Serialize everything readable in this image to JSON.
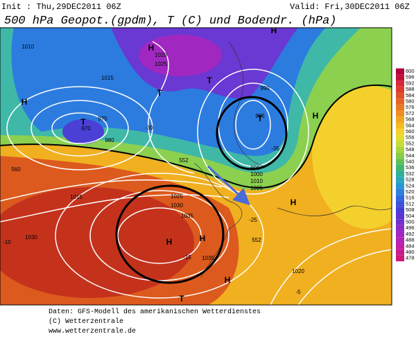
{
  "header": {
    "init": "Init : Thu,29DEC2011 06Z",
    "valid": "Valid: Fri,30DEC2011 06Z",
    "title": "500 hPa Geopot.(gpdm), T (C) und Bodendr. (hPa)"
  },
  "colorbar": {
    "levels": [
      600,
      596,
      592,
      588,
      584,
      580,
      576,
      572,
      568,
      564,
      560,
      556,
      552,
      548,
      544,
      540,
      536,
      532,
      528,
      524,
      520,
      516,
      512,
      508,
      504,
      500,
      496,
      492,
      488,
      484,
      480,
      478
    ],
    "colors": [
      "#b0003a",
      "#c4103a",
      "#d4283a",
      "#dc3c30",
      "#e0502a",
      "#e46428",
      "#e87a24",
      "#ec9020",
      "#f0a620",
      "#f2bc22",
      "#f4d028",
      "#e4dc30",
      "#c8dc38",
      "#a8d640",
      "#88cc48",
      "#60c058",
      "#40b870",
      "#30b09a",
      "#2aa8bc",
      "#2898d4",
      "#2c80dc",
      "#3068e0",
      "#3a52dc",
      "#463ed6",
      "#5a34d2",
      "#7030cc",
      "#8a2cc6",
      "#a028c0",
      "#b424b4",
      "#c020a4",
      "#c81c8c",
      "#d01878"
    ]
  },
  "map": {
    "labels": [
      "H",
      "T",
      "H",
      "T",
      "T",
      "H",
      "T",
      "H",
      "H",
      "H",
      "H",
      "H",
      "T",
      "1030",
      "1035",
      "1025",
      "1030",
      "1015",
      "1010",
      "1005",
      "1000",
      "995",
      "985",
      "990",
      "970",
      "975",
      "980",
      "1015",
      "1010",
      "1020",
      "1025",
      "1035",
      "1020",
      "-30",
      "-35",
      "-25",
      "-10",
      "-15",
      "-5",
      "552",
      "552",
      "560"
    ]
  },
  "footer": {
    "line1": "Daten: GFS-Modell des amerikanischen Wetterdienstes",
    "line2": "(C) Wetterzentrale",
    "line3": "www.wetterzentrale.de"
  }
}
